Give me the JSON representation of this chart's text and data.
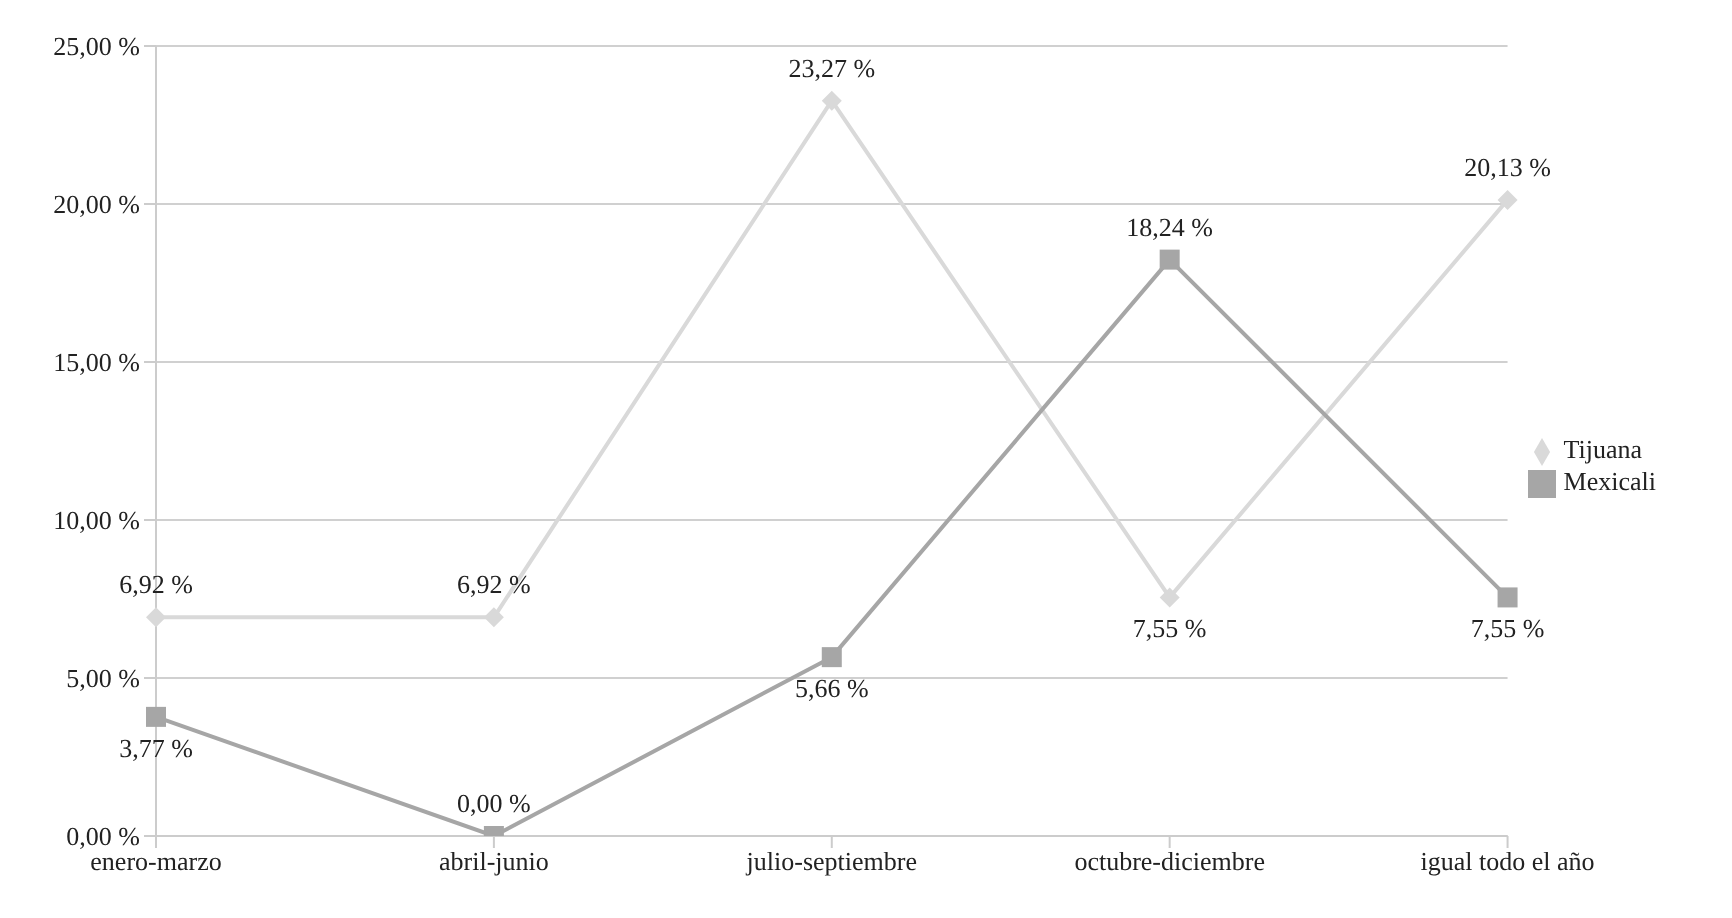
{
  "chart_data": {
    "type": "line",
    "categories": [
      "enero-marzo",
      "abril-junio",
      "julio-septiembre",
      "octubre-diciembre",
      "igual todo el año"
    ],
    "series": [
      {
        "name": "Tijuana",
        "color": "#d9d9d9",
        "marker": "diamond",
        "values": [
          6.92,
          6.92,
          23.27,
          7.55,
          20.13
        ],
        "value_labels": [
          "6,92 %",
          "6,92 %",
          "23,27 %",
          "7,55 %",
          "20,13 %"
        ]
      },
      {
        "name": "Mexicali",
        "color": "#a6a6a6",
        "marker": "square",
        "values": [
          3.77,
          0,
          5.66,
          18.24,
          7.55
        ],
        "value_labels": [
          "3,77 %",
          "0,00 %",
          "5,66 %",
          "18,24 %",
          "7,55 %"
        ]
      }
    ],
    "ylim": [
      0,
      25
    ],
    "yticks": [
      {
        "value": 0,
        "label": "0,00 %"
      },
      {
        "value": 5,
        "label": "5,00 %"
      },
      {
        "value": 10,
        "label": "10,00 %"
      },
      {
        "value": 15,
        "label": "15,00 %"
      },
      {
        "value": 20,
        "label": "20,00 %"
      },
      {
        "value": 25,
        "label": "25,00 %"
      }
    ],
    "grid": "y",
    "legend": "right"
  }
}
